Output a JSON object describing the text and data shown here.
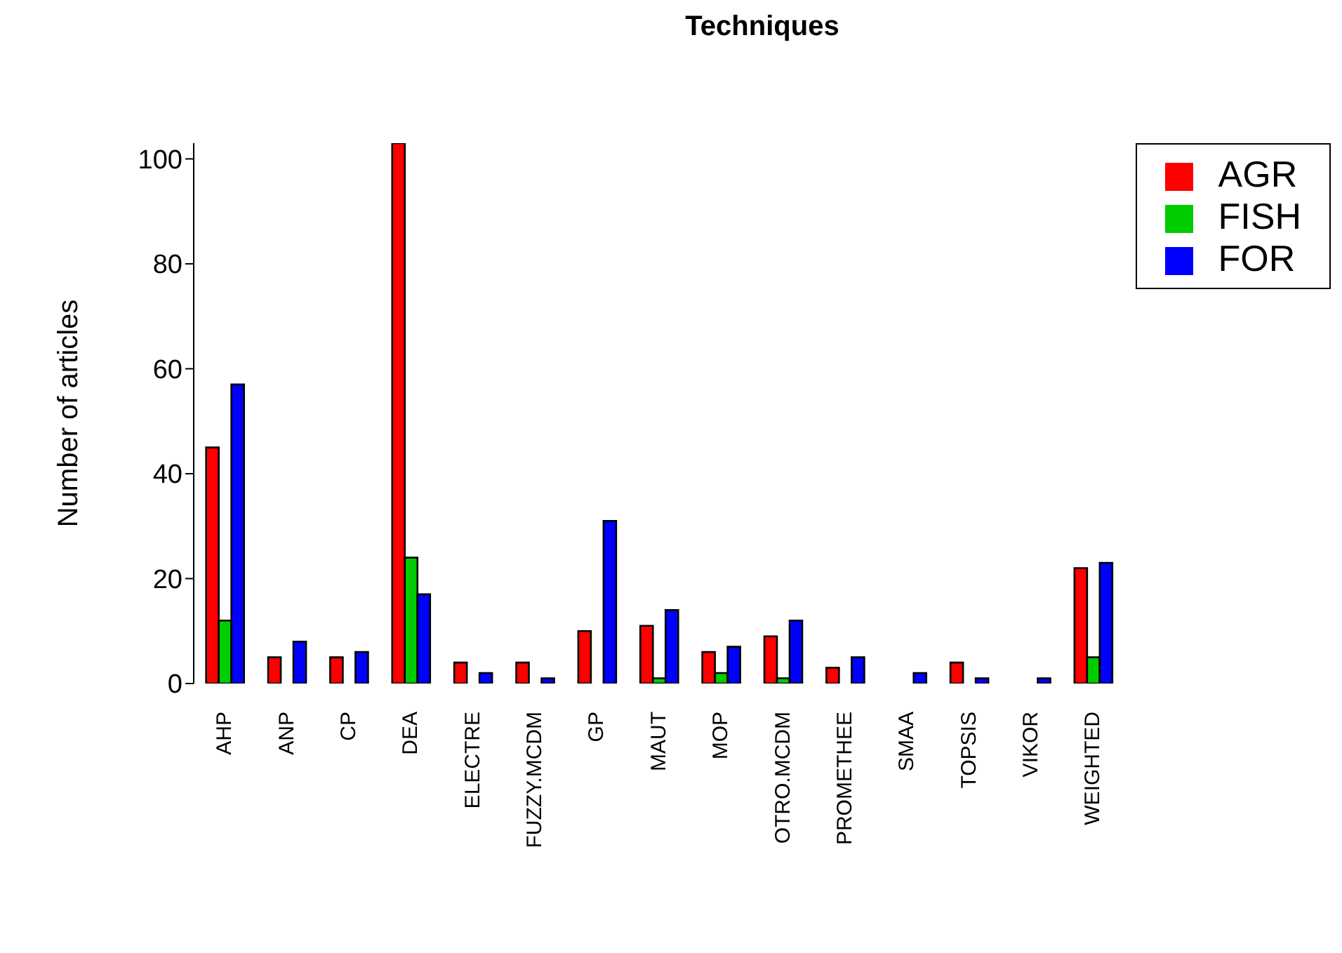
{
  "chart_data": {
    "type": "bar",
    "title": "Techniques",
    "ylabel": "Number of articles",
    "categories": [
      "AHP",
      "ANP",
      "CP",
      "DEA",
      "ELECTRE",
      "FUZZY.MCDM",
      "GP",
      "MAUT",
      "MOP",
      "OTRO.MCDM",
      "PROMETHEE",
      "SMAA",
      "TOPSIS",
      "VIKOR",
      "WEIGHTED"
    ],
    "series": [
      {
        "name": "AGR",
        "color": "#ff0000",
        "values": [
          45,
          5,
          5,
          103,
          4,
          4,
          10,
          11,
          6,
          9,
          3,
          0,
          4,
          0,
          22
        ]
      },
      {
        "name": "FISH",
        "color": "#00cd00",
        "values": [
          12,
          0,
          0,
          24,
          0,
          0,
          0,
          1,
          2,
          1,
          0,
          0,
          0,
          0,
          5
        ]
      },
      {
        "name": "FOR",
        "color": "#0000ff",
        "values": [
          57,
          8,
          6,
          17,
          2,
          1,
          31,
          14,
          7,
          12,
          5,
          2,
          1,
          1,
          23
        ]
      }
    ],
    "ylim": [
      0,
      103
    ],
    "yticks": [
      0,
      20,
      40,
      60,
      80,
      100
    ],
    "grid": false,
    "legend": "top right"
  }
}
